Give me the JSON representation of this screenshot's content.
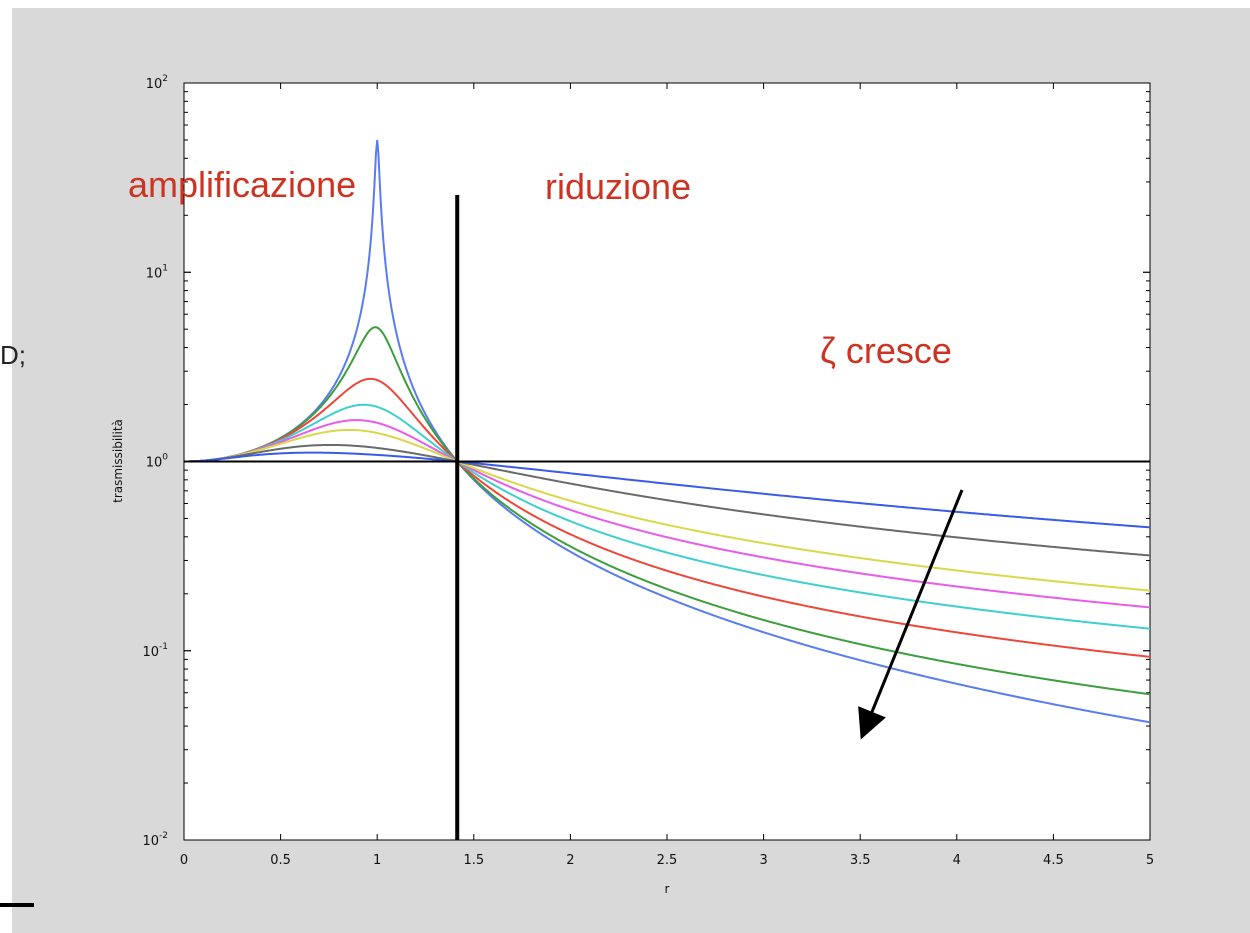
{
  "left_edge_text": "D;",
  "chart_data": {
    "type": "line",
    "title": "",
    "xlabel": "r",
    "ylabel": "trasmissibilità",
    "xlim": [
      0,
      5
    ],
    "ylim": [
      0.01,
      100
    ],
    "yscale": "log",
    "grid": false,
    "x_ticks": [
      "0",
      "0.5",
      "1",
      "1.5",
      "2",
      "2.5",
      "3",
      "3.5",
      "4",
      "4.5",
      "5"
    ],
    "y_ticks": [
      {
        "value": 0.01,
        "base": "10",
        "exp": "-2"
      },
      {
        "value": 0.1,
        "base": "10",
        "exp": "-1"
      },
      {
        "value": 1,
        "base": "10",
        "exp": "0"
      },
      {
        "value": 10,
        "base": "10",
        "exp": "1"
      },
      {
        "value": 100,
        "base": "10",
        "exp": "2"
      }
    ],
    "series": [
      {
        "zeta": 0.01,
        "color": "#5a7cf2"
      },
      {
        "zeta": 0.1,
        "color": "#3d9e3d"
      },
      {
        "zeta": 0.2,
        "color": "#f0463a"
      },
      {
        "zeta": 0.3,
        "color": "#3fcfcf"
      },
      {
        "zeta": 0.4,
        "color": "#e85ce8"
      },
      {
        "zeta": 0.5,
        "color": "#d8d84a"
      },
      {
        "zeta": 0.8,
        "color": "#6a6a6a"
      },
      {
        "zeta": 1.2,
        "color": "#3a5ae8"
      }
    ],
    "reference_line": {
      "y": 1,
      "color": "#000000"
    },
    "divider_line": {
      "x": 1.4142
    },
    "annotations": [
      {
        "id": "amplificazione",
        "text": "amplificazione",
        "color": "#cc3322"
      },
      {
        "id": "riduzione",
        "text": "riduzione",
        "color": "#cc3322"
      },
      {
        "id": "zeta",
        "text": "ζ cresce",
        "color": "#cc3322"
      }
    ]
  }
}
